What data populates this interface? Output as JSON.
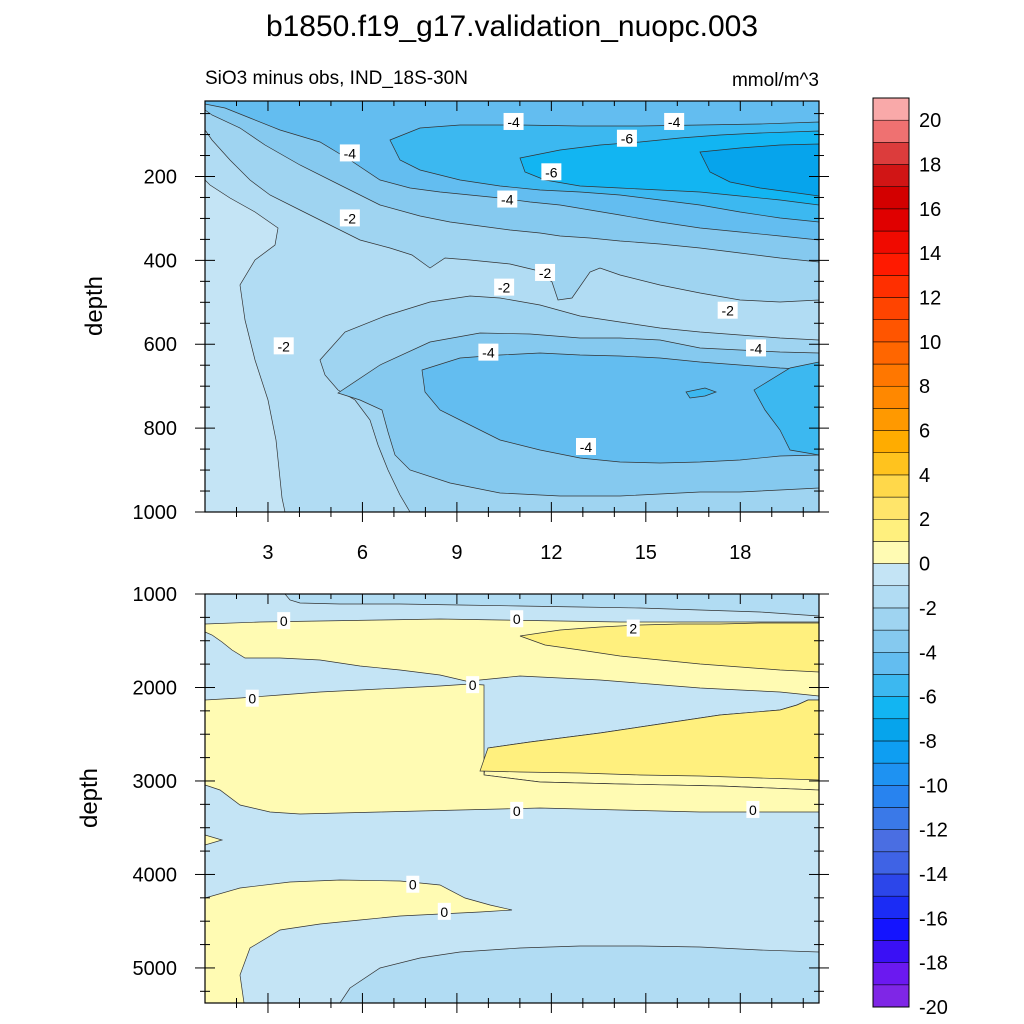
{
  "figure": {
    "title": "b1850.f19_g17.validation_nuopc.003",
    "left_string": "SiO3 minus obs, IND_18S-30N",
    "right_string": "mmol/m^3"
  },
  "chart_data": [
    {
      "type": "contour",
      "panel": "upper",
      "ylabel": "depth",
      "xlabel": "",
      "xlim": [
        1,
        20.5
      ],
      "ylim": [
        1000,
        20
      ],
      "x_ticks": [
        "3",
        "6",
        "9",
        "12",
        "15",
        "18"
      ],
      "y_ticks": [
        "200",
        "400",
        "600",
        "800",
        "1000"
      ],
      "contour_interval": 1,
      "regions": [
        {
          "level": "-1 to 0",
          "color": "#c4e4f5"
        },
        {
          "level": "-2 to -1",
          "color": "#b1dcf3"
        },
        {
          "level": "-3 to -2",
          "color": "#9fd4f1"
        },
        {
          "level": "-4 to -3",
          "color": "#85c9ef"
        },
        {
          "level": "-5 to -4",
          "color": "#63bdf0"
        },
        {
          "level": "-6 to -5",
          "color": "#3cb8f0"
        },
        {
          "level": "-7 to -6",
          "color": "#12b5f2"
        },
        {
          "level": "-8 to -7",
          "color": "#06a4ec"
        }
      ],
      "contour_labels": [
        {
          "text": "-4",
          "x": 10.8,
          "y": 70
        },
        {
          "text": "-4",
          "x": 15.9,
          "y": 70
        },
        {
          "text": "-6",
          "x": 14.4,
          "y": 110
        },
        {
          "text": "-4",
          "x": 5.6,
          "y": 145
        },
        {
          "text": "-6",
          "x": 12.0,
          "y": 190
        },
        {
          "text": "-4",
          "x": 10.6,
          "y": 255
        },
        {
          "text": "-2",
          "x": 5.6,
          "y": 300
        },
        {
          "text": "-2",
          "x": 11.8,
          "y": 430
        },
        {
          "text": "-2",
          "x": 10.5,
          "y": 465
        },
        {
          "text": "-2",
          "x": 17.6,
          "y": 520
        },
        {
          "text": "-2",
          "x": 3.5,
          "y": 605
        },
        {
          "text": "-4",
          "x": 10.0,
          "y": 620
        },
        {
          "text": "-4",
          "x": 18.5,
          "y": 610
        },
        {
          "text": "-4",
          "x": 13.1,
          "y": 845
        }
      ]
    },
    {
      "type": "contour",
      "panel": "lower",
      "ylabel": "depth",
      "xlabel": "",
      "xlim": [
        1,
        20.5
      ],
      "ylim": [
        5375,
        1000
      ],
      "y_ticks": [
        "1000",
        "2000",
        "3000",
        "4000",
        "5000"
      ],
      "contour_interval": 1,
      "regions": [
        {
          "level": "-2 to -1",
          "color": "#b1dcf3"
        },
        {
          "level": "-1 to 0",
          "color": "#c4e4f5"
        },
        {
          "level": "0 to 1",
          "color": "#fffbb3"
        },
        {
          "level": "1 to 2",
          "color": "#fff07e"
        }
      ],
      "contour_labels": [
        {
          "text": "0",
          "x": 3.5,
          "y": 1290
        },
        {
          "text": "0",
          "x": 10.9,
          "y": 1270
        },
        {
          "text": "2",
          "x": 14.6,
          "y": 1370
        },
        {
          "text": "0",
          "x": 9.5,
          "y": 1975
        },
        {
          "text": "0",
          "x": 2.5,
          "y": 2120
        },
        {
          "text": "0",
          "x": 10.9,
          "y": 3320
        },
        {
          "text": "0",
          "x": 18.4,
          "y": 3310
        },
        {
          "text": "0",
          "x": 7.6,
          "y": 4110
        },
        {
          "text": "0",
          "x": 8.6,
          "y": 4400
        }
      ]
    },
    {
      "type": "colorbar",
      "levels": [
        -20,
        -19,
        -18,
        -17,
        -16,
        -15,
        -14,
        -13,
        -12,
        -11,
        -10,
        -9,
        -8,
        -7,
        -6,
        -5,
        -4,
        -3,
        -2,
        -1,
        0,
        1,
        2,
        3,
        4,
        5,
        6,
        7,
        8,
        9,
        10,
        11,
        12,
        13,
        14,
        15,
        16,
        17,
        18,
        19,
        20
      ],
      "tick_labels": [
        "-20",
        "-18",
        "-16",
        "-14",
        "-12",
        "-10",
        "-8",
        "-6",
        "-4",
        "-2",
        "0",
        "2",
        "4",
        "6",
        "8",
        "10",
        "12",
        "14",
        "16",
        "18",
        "20"
      ],
      "colors": [
        "#7f26e6",
        "#6b19f0",
        "#3a10f5",
        "#1414ff",
        "#1b2cf5",
        "#2c46ea",
        "#3f63e5",
        "#4a6ee2",
        "#3a79e8",
        "#2883ef",
        "#1e92f2",
        "#0e9ef2",
        "#06a4ec",
        "#12b5f2",
        "#3cb8f0",
        "#63bdf0",
        "#85c9ef",
        "#9fd4f1",
        "#b1dcf3",
        "#c4e4f5",
        "#fffbb3",
        "#fff07e",
        "#ffe56a",
        "#ffd84a",
        "#ffc31e",
        "#ffac00",
        "#ff9900",
        "#ff8800",
        "#ff7700",
        "#ff6600",
        "#ff5500",
        "#ff4400",
        "#ff2f00",
        "#ff1a00",
        "#f00a00",
        "#e00000",
        "#d30000",
        "#d11515",
        "#dc3c3c",
        "#ef7171",
        "#f9a9a9"
      ]
    }
  ]
}
